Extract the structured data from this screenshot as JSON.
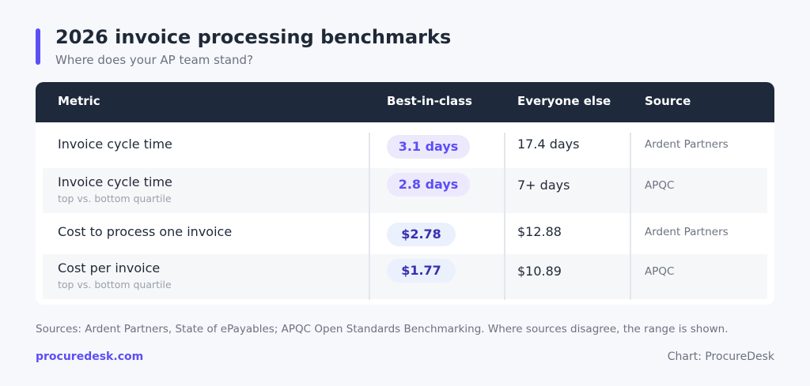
{
  "header": {
    "title": "2026 invoice processing benchmarks",
    "subtitle": "Where does your AP team stand?"
  },
  "colors": {
    "accent": "#5b4ff5",
    "header_bg": "#1e293b",
    "pill_purple_bg": "#ede9fc",
    "pill_blue_bg": "#eaf1fd"
  },
  "chart_data": {
    "type": "table",
    "columns": [
      "Metric",
      "Best-in-class",
      "Everyone else",
      "Source"
    ],
    "rows": [
      {
        "metric": "Invoice cycle time",
        "note": "",
        "best": "3.1 days",
        "other": "17.4 days",
        "source": "Ardent Partners",
        "pill": "purple"
      },
      {
        "metric": "Invoice cycle time",
        "note": "top vs. bottom quartile",
        "best": "2.8 days",
        "other": "7+ days",
        "source": "APQC",
        "pill": "purple"
      },
      {
        "metric": "Cost to process one invoice",
        "note": "",
        "best": "$2.78",
        "other": "$12.88",
        "source": "Ardent Partners",
        "pill": "blue"
      },
      {
        "metric": "Cost per invoice",
        "note": "top vs. bottom quartile",
        "best": "$1.77",
        "other": "$10.89",
        "source": "APQC",
        "pill": "blue"
      }
    ]
  },
  "footer": {
    "sources": "Sources: Ardent Partners, State of ePayables; APQC Open Standards Benchmarking. Where sources disagree, the range is shown.",
    "brand": "procuredesk.com",
    "credit": "Chart: ProcureDesk"
  }
}
